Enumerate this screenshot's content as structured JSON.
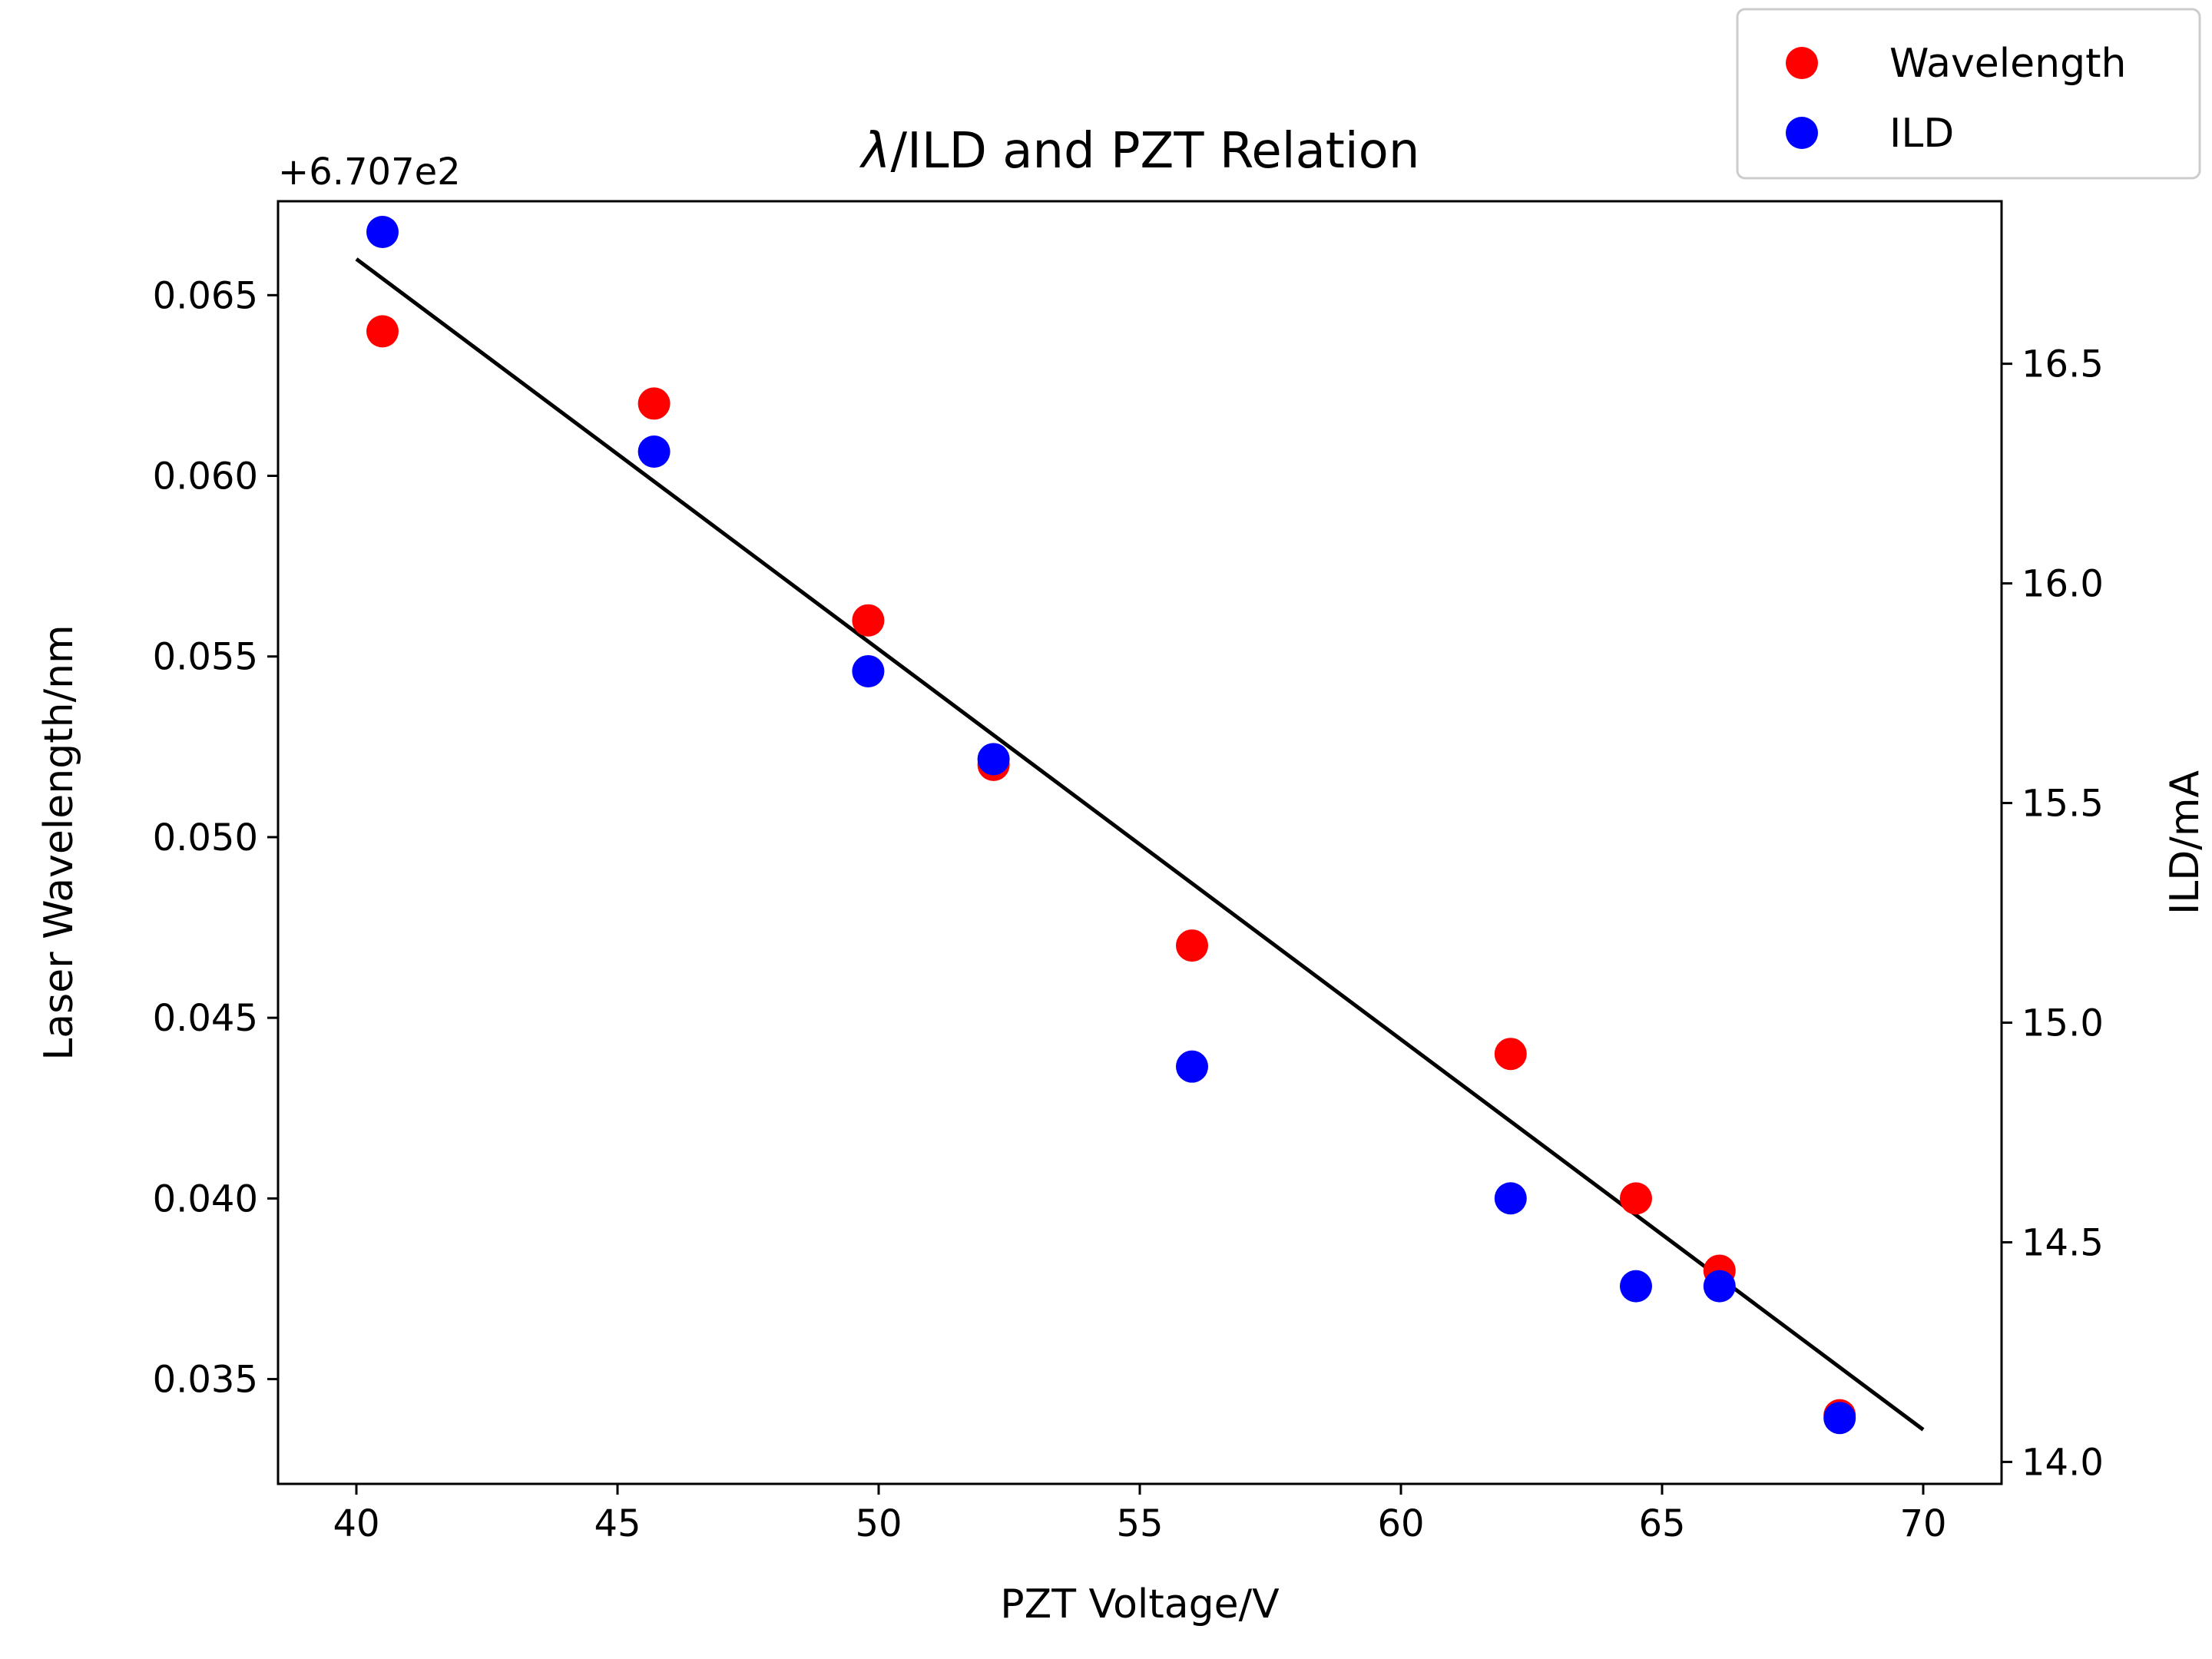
{
  "chart_data": {
    "type": "scatter",
    "title": "λ/ILD and PZT Relation",
    "title_symbol": "λ",
    "title_rest": "/ILD and PZT Relation",
    "xlabel": "PZT Voltage/V",
    "ylabel_left": "Laser Wavelength/nm",
    "ylabel_right": "ILD/mA",
    "offset_text": "+6.707e2",
    "xlim": [
      38.5,
      71.5
    ],
    "ylim_left": [
      0.0321,
      0.0676
    ],
    "ylim_right": [
      13.95,
      16.87
    ],
    "x_ticks": [
      40,
      45,
      50,
      55,
      60,
      65,
      70
    ],
    "y_left_ticks": [
      "0.035",
      "0.040",
      "0.045",
      "0.050",
      "0.055",
      "0.060",
      "0.065"
    ],
    "y_right_ticks": [
      "14.0",
      "14.5",
      "15.0",
      "15.5",
      "16.0",
      "16.5"
    ],
    "grid": false,
    "legend_position": "upper-right-outside",
    "series": [
      {
        "name": "Wavelength",
        "axis": "left",
        "color": "#ff0000",
        "marker": "circle",
        "x": [
          40.5,
          45.7,
          49.8,
          52.2,
          56.0,
          62.1,
          64.5,
          66.1,
          68.4
        ],
        "y": [
          0.064,
          0.062,
          0.056,
          0.052,
          0.047,
          0.044,
          0.04,
          0.038,
          0.034
        ]
      },
      {
        "name": "ILD",
        "axis": "right",
        "color": "#0000ff",
        "marker": "circle",
        "x": [
          40.5,
          45.7,
          49.8,
          52.2,
          56.0,
          62.1,
          64.5,
          66.1,
          68.4
        ],
        "y": [
          16.8,
          16.3,
          15.8,
          15.6,
          14.9,
          14.6,
          14.4,
          14.4,
          14.1
        ]
      }
    ],
    "fit_line": {
      "axis": "left",
      "color": "#000000",
      "x": [
        40,
        70
      ],
      "y": [
        0.066,
        0.0336
      ]
    }
  }
}
